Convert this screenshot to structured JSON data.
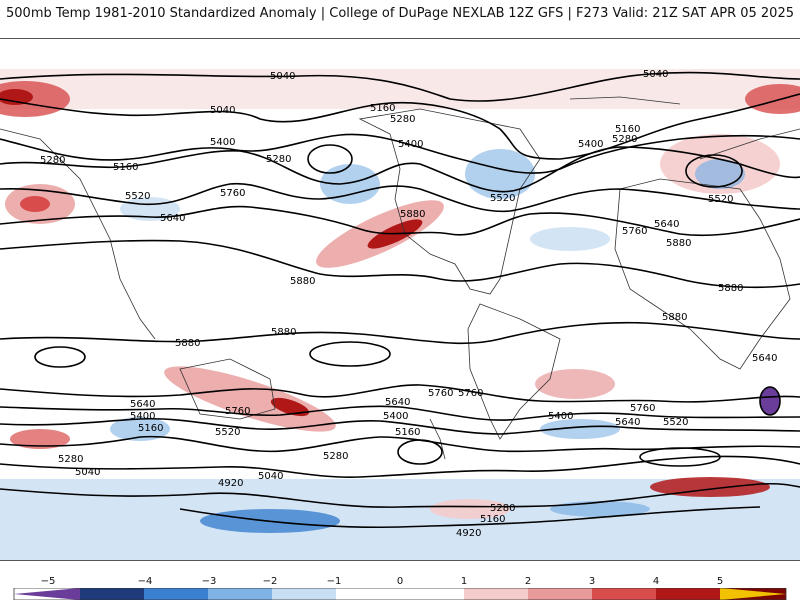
{
  "header": {
    "title": "500mb Temp 1981-2010 Standardized Anomaly | College of DuPage NEXLAB",
    "run_info": "12Z GFS | F273 Valid: 21Z SAT APR 05 2025"
  },
  "map": {
    "contour_labels": [
      "5040",
      "5040",
      "5160",
      "5280",
      "5400",
      "5160",
      "5280",
      "5520",
      "5640",
      "5760",
      "5280",
      "5400",
      "5520",
      "5640",
      "5760",
      "5880",
      "5880",
      "5880",
      "5760",
      "5640",
      "5400",
      "5160",
      "5280",
      "5040",
      "4920",
      "5040",
      "5160",
      "5280",
      "5400",
      "5520",
      "5640",
      "5760",
      "4920",
      "5160",
      "5280",
      "5400",
      "5520",
      "5640",
      "5760",
      "5880",
      "5880",
      "5880",
      "5880",
      "5640",
      "5760",
      "5040",
      "5160",
      "5280",
      "5400",
      "5520"
    ]
  },
  "colorbar": {
    "ticks": [
      "−5",
      "−4",
      "−3",
      "−2",
      "−1",
      "0",
      "1",
      "2",
      "3",
      "4",
      "5"
    ],
    "colors": {
      "m5": "#6a3d9a",
      "m4": "#1f3a7a",
      "m3": "#3b7fd0",
      "m2": "#7fb2e5",
      "m1": "#c8def2",
      "z": "#ffffff",
      "p1": "#f4cccc",
      "p2": "#e89a9a",
      "p3": "#d84c4c",
      "p4": "#b01818",
      "p5": "#7a0606",
      "tip": "#f2c200"
    }
  }
}
